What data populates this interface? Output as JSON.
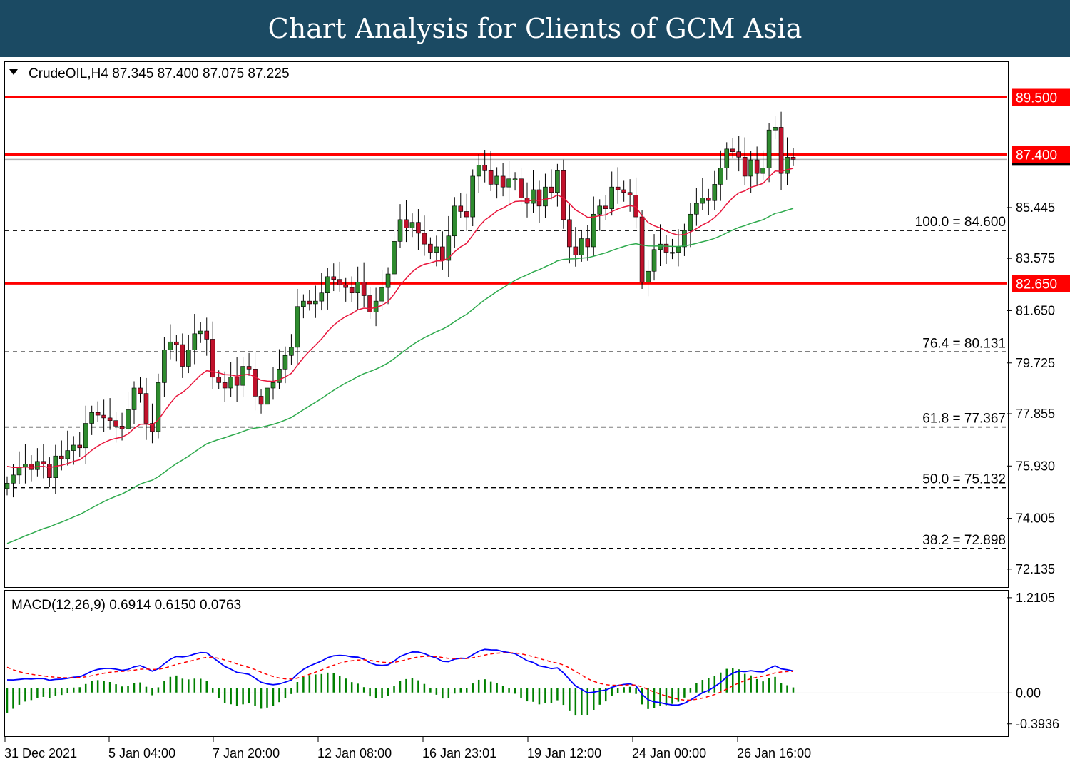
{
  "banner": {
    "title": "Chart Analysis for Clients of GCM Asia"
  },
  "chart_data": {
    "type": "candlestick",
    "symbol_header": "CrudeOIL,H4  87.345 87.400 87.075 87.225",
    "ylim": [
      71.5,
      90.8
    ],
    "y_ticks": [
      "72.135",
      "74.005",
      "75.930",
      "77.855",
      "79.725",
      "81.650",
      "83.575",
      "85.445"
    ],
    "x_ticks": [
      "31 Dec 2021",
      "5 Jan 04:00",
      "7 Jan 20:00",
      "12 Jan 08:00",
      "16 Jan 23:01",
      "19 Jan 12:00",
      "24 Jan 00:00",
      "26 Jan 16:00"
    ],
    "levels": [
      {
        "value": 89.5,
        "label": "89.500",
        "color": "#ff0000",
        "style": "solid"
      },
      {
        "value": 87.4,
        "label": "87.400",
        "color": "#ff0000",
        "style": "solid"
      },
      {
        "value": 82.65,
        "label": "82.650",
        "color": "#ff0000",
        "style": "solid"
      }
    ],
    "fibonacci": [
      {
        "value": 84.6,
        "label": "100.0 = 84.600"
      },
      {
        "value": 80.131,
        "label": "76.4 = 80.131"
      },
      {
        "value": 77.367,
        "label": "61.8 = 77.367"
      },
      {
        "value": 75.132,
        "label": "50.0 = 75.132"
      },
      {
        "value": 72.898,
        "label": "38.2 = 72.898"
      }
    ],
    "closes": [
      75.3,
      75.6,
      75.9,
      76.0,
      75.8,
      76.1,
      76.0,
      75.5,
      76.3,
      76.2,
      76.5,
      76.7,
      76.6,
      77.5,
      77.9,
      77.8,
      77.7,
      77.6,
      77.4,
      77.3,
      78.0,
      78.8,
      78.6,
      77.5,
      77.2,
      79.0,
      80.2,
      80.5,
      80.4,
      79.6,
      80.2,
      80.8,
      80.9,
      80.6,
      79.2,
      79.0,
      78.8,
      79.2,
      78.9,
      79.6,
      79.5,
      78.5,
      78.2,
      78.8,
      79.0,
      79.5,
      80.0,
      80.3,
      81.8,
      82.0,
      81.9,
      82.0,
      82.3,
      82.9,
      82.8,
      82.6,
      82.5,
      82.3,
      82.7,
      82.2,
      81.6,
      82.0,
      82.5,
      83.0,
      84.2,
      85.0,
      84.7,
      84.9,
      84.5,
      84.1,
      83.8,
      84.0,
      83.5,
      84.4,
      85.5,
      85.3,
      85.1,
      86.6,
      87.0,
      86.8,
      86.3,
      86.6,
      86.2,
      86.5,
      86.5,
      85.8,
      85.6,
      86.1,
      85.5,
      86.2,
      86.0,
      86.8,
      85.0,
      84.0,
      83.7,
      84.3,
      84.0,
      85.2,
      85.5,
      85.4,
      86.2,
      86.1,
      86.0,
      85.9,
      85.1,
      82.7,
      83.1,
      83.9,
      84.1,
      83.8,
      83.8,
      84.0,
      84.6,
      85.2,
      85.6,
      85.8,
      85.7,
      86.3,
      86.9,
      87.6,
      87.5,
      87.3,
      86.6,
      87.2,
      86.7,
      86.9,
      88.3,
      88.4,
      86.7,
      87.3,
      87.22
    ],
    "ma_fast": {
      "color": "#e8163c",
      "start": 76.0,
      "end": 85.75
    },
    "ma_slow": {
      "color": "#2eaa4d",
      "start": 73.0,
      "end": 84.8
    },
    "macd": {
      "header": "MACD(12,26,9) 0.6914 0.6150 0.0763",
      "ylim": [
        -0.55,
        1.3
      ],
      "ticks": [
        "1.2105",
        "0.00",
        "-0.3936"
      ],
      "main_color": "#0000ff",
      "signal_color": "#ff0000",
      "hist_color": "#008000"
    }
  }
}
